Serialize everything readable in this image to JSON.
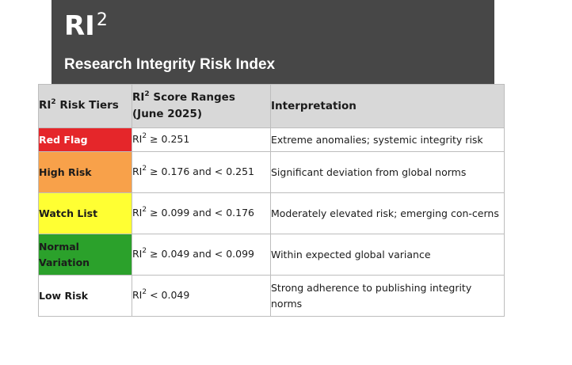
{
  "header": {
    "logo_main": "RI",
    "logo_sup": "2",
    "subtitle": "Research Integrity Risk Index"
  },
  "table": {
    "headers": {
      "tier_prefix": "RI",
      "tier_sup": "2",
      "tier_rest": " Risk Tiers",
      "range_prefix": "RI",
      "range_sup": "2",
      "range_rest": " Score Ranges (June 2025)",
      "interpretation": "Interpretation"
    },
    "rows": [
      {
        "tier": "Red Flag",
        "range_prefix": "RI",
        "range_sup": "2",
        "range_rest": " ≥ 0.251",
        "interpretation": "Extreme anomalies; systemic integrity risk",
        "color": "#e5262a"
      },
      {
        "tier": "High Risk",
        "range_prefix": "RI",
        "range_sup": "2",
        "range_rest": " ≥ 0.176 and < 0.251",
        "interpretation": "Significant deviation from global norms",
        "color": "#f8a14a"
      },
      {
        "tier": "Watch List",
        "range_prefix": "RI",
        "range_sup": "2",
        "range_rest": " ≥ 0.099 and < 0.176",
        "interpretation": "Moderately elevated risk; emerging con-cerns",
        "color": "#ffff33"
      },
      {
        "tier": "Normal Variation",
        "range_prefix": "RI",
        "range_sup": "2",
        "range_rest": " ≥ 0.049 and < 0.099",
        "interpretation": "Within expected global variance",
        "color": "#2ba12b"
      },
      {
        "tier": "Low Risk",
        "range_prefix": "RI",
        "range_sup": "2",
        "range_rest": " < 0.049",
        "interpretation": "Strong adherence to publishing integrity norms",
        "color": "#ffffff"
      }
    ]
  }
}
